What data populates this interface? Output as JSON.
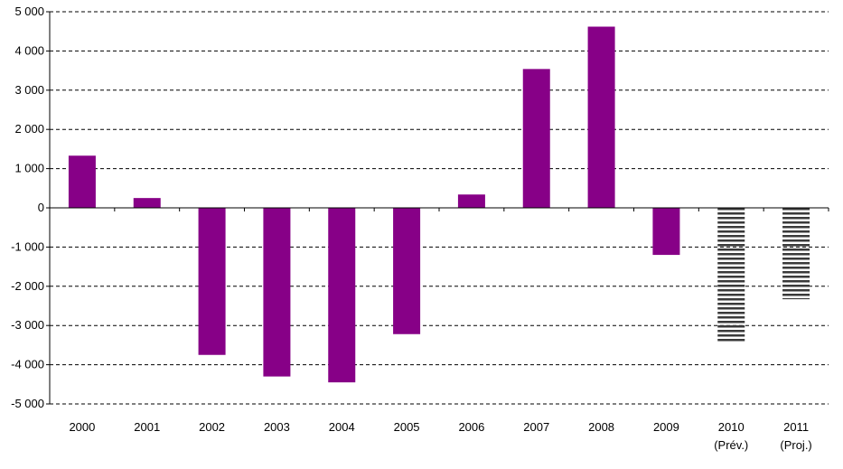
{
  "chart_data": {
    "type": "bar",
    "title": "",
    "xlabel": "",
    "ylabel": "",
    "ylim": [
      -5000,
      5000
    ],
    "y_ticks": [
      5000,
      4000,
      3000,
      2000,
      1000,
      0,
      -1000,
      -2000,
      -3000,
      -4000,
      -5000
    ],
    "y_tick_labels": [
      "5 000",
      "4 000",
      "3 000",
      "2 000",
      "1 000",
      "0",
      "-1 000",
      "-2 000",
      "-3 000",
      "-4 000",
      "-5 000"
    ],
    "grid": true,
    "categories": [
      {
        "label": "2000",
        "sublabel": ""
      },
      {
        "label": "2001",
        "sublabel": ""
      },
      {
        "label": "2002",
        "sublabel": ""
      },
      {
        "label": "2003",
        "sublabel": ""
      },
      {
        "label": "2004",
        "sublabel": ""
      },
      {
        "label": "2005",
        "sublabel": ""
      },
      {
        "label": "2006",
        "sublabel": ""
      },
      {
        "label": "2007",
        "sublabel": ""
      },
      {
        "label": "2008",
        "sublabel": ""
      },
      {
        "label": "2009",
        "sublabel": ""
      },
      {
        "label": "2010",
        "sublabel": "(Prév.)"
      },
      {
        "label": "2011",
        "sublabel": "(Proj.)"
      }
    ],
    "values": [
      1330,
      250,
      -3750,
      -4300,
      -4450,
      -3220,
      340,
      3540,
      4620,
      -1200,
      -3400,
      -2330
    ],
    "bar_styles": [
      "solid",
      "solid",
      "solid",
      "solid",
      "solid",
      "solid",
      "solid",
      "solid",
      "solid",
      "solid",
      "striped",
      "striped"
    ],
    "colors": {
      "bar": "#870087",
      "stripe": "#3a3a3a",
      "grid": "#000000",
      "axis": "#000000"
    }
  }
}
